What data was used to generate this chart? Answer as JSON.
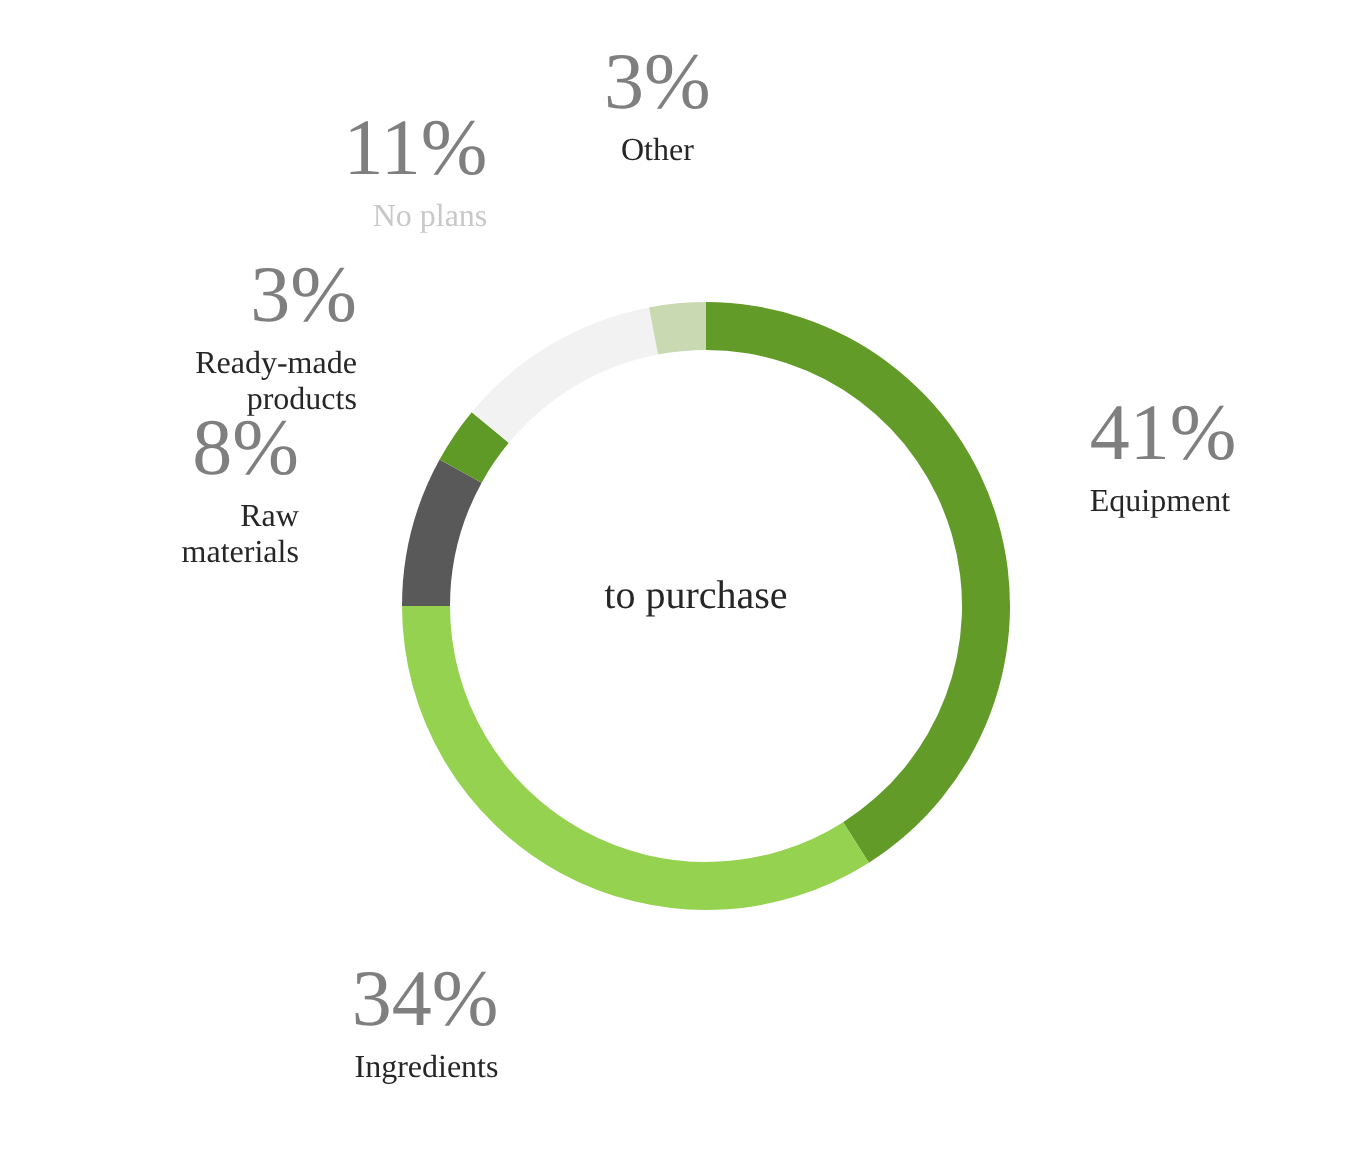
{
  "chart_data": {
    "type": "donut",
    "title": "to purchase",
    "categories": [
      "Equipment",
      "Ingredients",
      "Raw materials",
      "Ready-made products",
      "No plans",
      "Other"
    ],
    "values": [
      41,
      34,
      8,
      3,
      11,
      3
    ],
    "value_labels": [
      "41%",
      "34%",
      "8%",
      "3%",
      "11%",
      "3%"
    ],
    "colors": [
      "#629b27",
      "#95d250",
      "#595959",
      "#5f9a26",
      "#f2f2f2",
      "#c9d9b2"
    ],
    "legend": false
  }
}
